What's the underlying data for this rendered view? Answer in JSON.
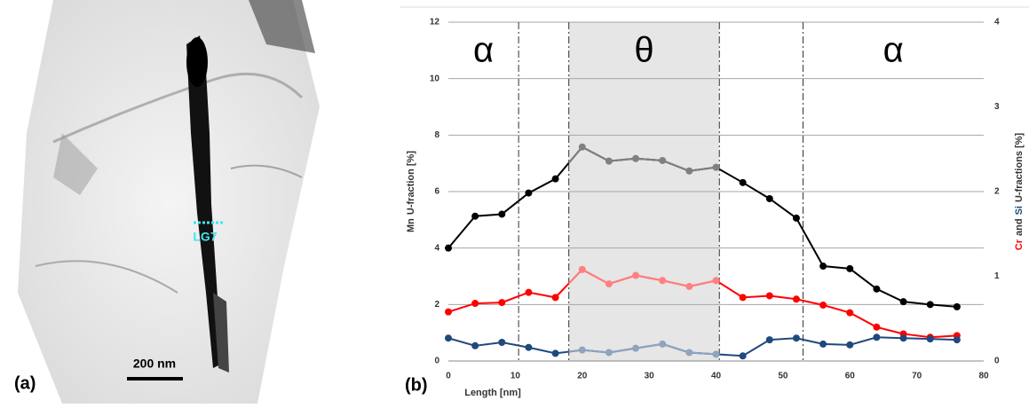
{
  "image_panel": {
    "label": "(a)",
    "scale_bar": "200 nm",
    "marker": "LG7"
  },
  "chart_data": {
    "type": "line",
    "panel_label": "(b)",
    "xlabel": "Length  [nm]",
    "ylabel": "U-fraction  [%]",
    "y2label": "U-fractions  [%]",
    "y2label_join": "and",
    "x": [
      0,
      4,
      8,
      12,
      16,
      20,
      24,
      28,
      32,
      36,
      40,
      44,
      48,
      52,
      56,
      60,
      64,
      68,
      72,
      76
    ],
    "series": [
      {
        "name": "Mn",
        "color": "#000000",
        "values": [
          4.0,
          5.13,
          5.2,
          5.95,
          6.45,
          7.58,
          7.08,
          7.17,
          7.1,
          6.73,
          6.86,
          6.32,
          5.75,
          5.06,
          3.36,
          3.27,
          2.55,
          2.1,
          2.0,
          1.92
        ]
      },
      {
        "name": "Cr",
        "color": "#ff0000",
        "axis": "y2",
        "values": [
          0.58,
          0.68,
          0.69,
          0.81,
          0.75,
          1.08,
          0.91,
          1.01,
          0.95,
          0.88,
          0.95,
          0.75,
          0.77,
          0.73,
          0.66,
          0.57,
          0.4,
          0.32,
          0.28,
          0.3
        ]
      },
      {
        "name": "Si",
        "color": "#1f497d",
        "axis": "y2",
        "values": [
          0.27,
          0.18,
          0.22,
          0.16,
          0.09,
          0.13,
          0.1,
          0.15,
          0.2,
          0.1,
          0.08,
          0.06,
          0.25,
          0.27,
          0.2,
          0.19,
          0.28,
          0.27,
          0.26,
          0.25
        ]
      }
    ],
    "xlim": [
      0,
      80
    ],
    "xticks": [
      0,
      10,
      20,
      30,
      40,
      50,
      60,
      70,
      80
    ],
    "ylim": [
      0,
      12
    ],
    "yticks": [
      0,
      2,
      4,
      6,
      8,
      10,
      12
    ],
    "y2lim": [
      0,
      4
    ],
    "y2ticks": [
      0,
      1,
      2,
      3,
      4
    ],
    "grid": true,
    "phase_boundaries": [
      10.5,
      18,
      40.5,
      53
    ],
    "shaded_region": [
      18,
      40.5
    ],
    "phase_labels": [
      "α",
      "θ",
      "α"
    ]
  }
}
